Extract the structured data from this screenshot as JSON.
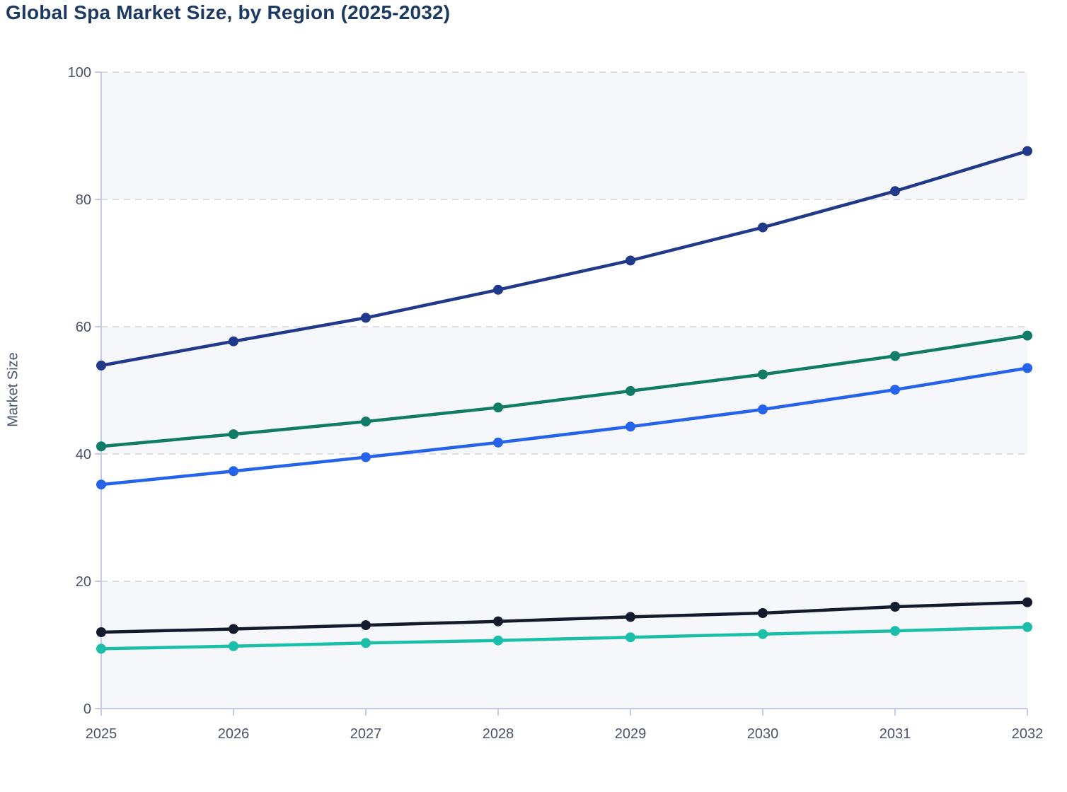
{
  "page": {
    "title": "Global Spa Market Size, by Region (2025-2032)"
  },
  "colors": {
    "title_text": "#1d3a63",
    "tick_text": "#4a5468",
    "axis_line": "#c3cbe9",
    "gridline": "#dbdee4",
    "band_fill": "#f5f7fa",
    "background": "#ffffff"
  },
  "chart_data": {
    "type": "line",
    "title": "Global Spa Market Size, by Region (2025-2032)",
    "xlabel": "",
    "ylabel": "Market Size",
    "x": [
      2025,
      2026,
      2027,
      2028,
      2029,
      2030,
      2031,
      2032
    ],
    "xtick_labels": [
      "2025",
      "2026",
      "2027",
      "2028",
      "2029",
      "2030",
      "2031",
      "2032"
    ],
    "yticks": [
      0,
      20,
      40,
      60,
      80,
      100
    ],
    "ylim": [
      0,
      100
    ],
    "grid": "horizontal-dashed",
    "legend": "none",
    "plot_style": "alternating horizontal bands shaded on 0-20, 40-60, 80-100",
    "marker": "filled-circle",
    "series": [
      {
        "name": "series-dark-navy",
        "color": "#21398a",
        "values": [
          53.9,
          57.7,
          61.4,
          65.8,
          70.4,
          75.6,
          81.3,
          87.6
        ]
      },
      {
        "name": "series-green",
        "color": "#107c66",
        "values": [
          41.2,
          43.1,
          45.1,
          47.3,
          49.9,
          52.5,
          55.4,
          58.6
        ]
      },
      {
        "name": "series-blue",
        "color": "#2563eb",
        "values": [
          35.2,
          37.3,
          39.5,
          41.8,
          44.3,
          47.0,
          50.1,
          53.5
        ]
      },
      {
        "name": "series-black",
        "color": "#131b2c",
        "values": [
          12.0,
          12.5,
          13.1,
          13.7,
          14.4,
          15.0,
          16.0,
          16.7
        ]
      },
      {
        "name": "series-teal",
        "color": "#1bbfa9",
        "values": [
          9.4,
          9.8,
          10.3,
          10.7,
          11.2,
          11.7,
          12.2,
          12.8
        ]
      }
    ]
  }
}
